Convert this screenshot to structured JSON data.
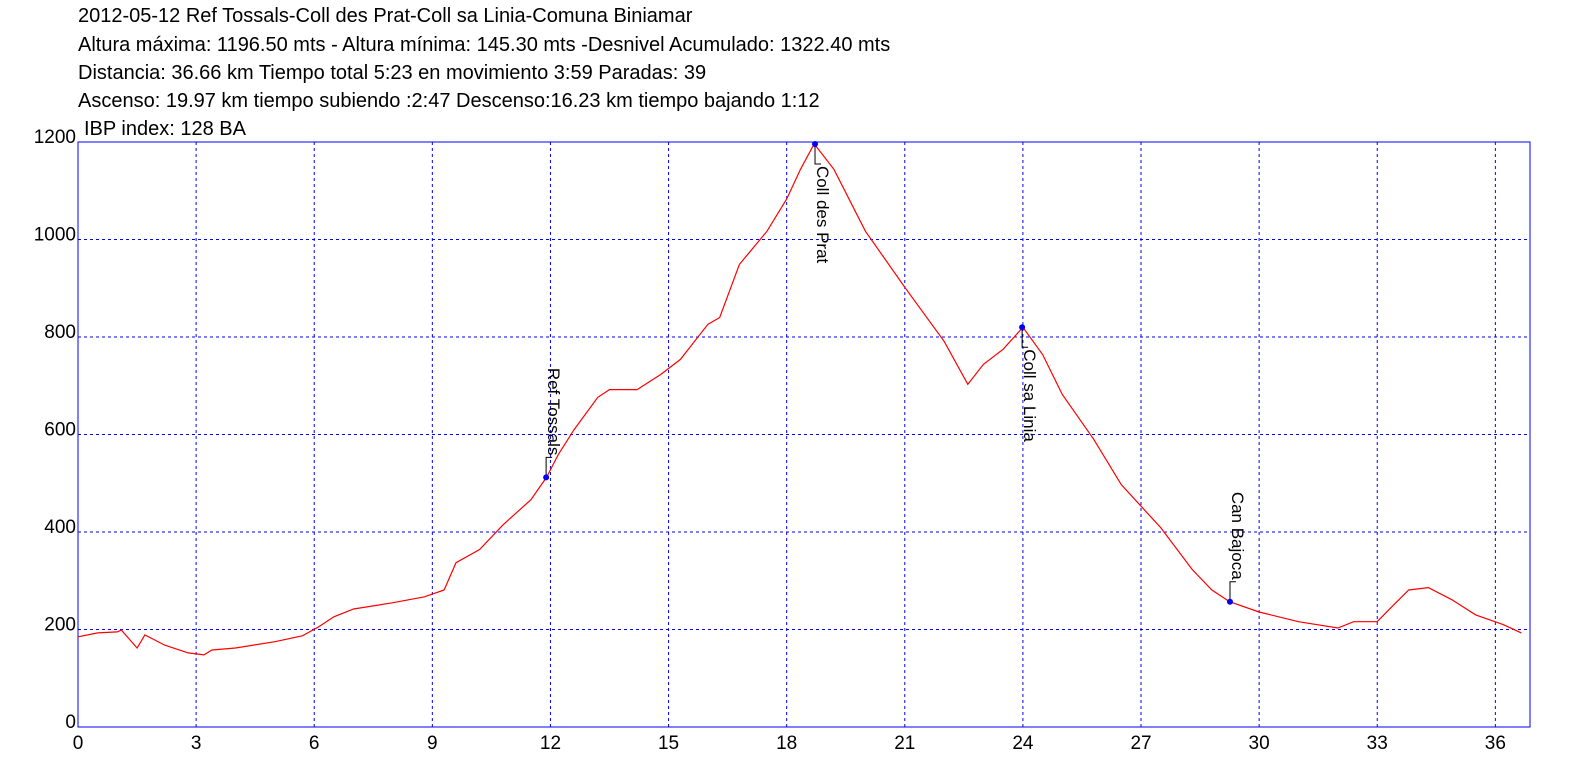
{
  "chart_data": {
    "type": "line",
    "title": "2012-05-12 Ref Tossals-Coll des Prat-Coll sa Linia-Comuna Biniamar",
    "subtitle": [
      "Altura máxima: 1196.50 mts - Altura mínima: 145.30 mts -Desnivel Acumulado: 1322.40 mts",
      "Distancia: 36.66 km  Tiempo total 5:23  en movimiento 3:59 Paradas: 39",
      "Ascenso: 19.97 km  tiempo subiendo :2:47  Descenso:16.23 km tiempo bajando 1:12",
      "IBP index: 128 BA"
    ],
    "x": [
      0,
      0.5,
      1.0,
      1.1,
      1.5,
      1.7,
      2.2,
      2.8,
      3.2,
      3.4,
      4,
      5,
      5.7,
      6.1,
      6.5,
      7,
      8,
      8.8,
      9.3,
      9.6,
      10.2,
      10.8,
      11.5,
      11.9,
      12.2,
      12.6,
      13.2,
      13.5,
      14.2,
      14.8,
      15.3,
      16,
      16.3,
      16.8,
      17.5,
      18,
      18.35,
      18.7,
      19.2,
      20,
      21,
      22,
      22.6,
      23,
      23.5,
      24.0,
      24.5,
      25,
      25.8,
      26.5,
      27.5,
      28.3,
      28.8,
      29.25,
      30,
      31,
      32,
      32.4,
      33,
      33.4,
      33.8,
      34.3,
      34.9,
      35.5,
      36.2,
      36.66
    ],
    "values": [
      185,
      193,
      195,
      199,
      162,
      189,
      168,
      152,
      148,
      158,
      162,
      175,
      187,
      205,
      226,
      242,
      255,
      267,
      281,
      337,
      364,
      415,
      466,
      512,
      559,
      610,
      676,
      692,
      692,
      723,
      754,
      826,
      840,
      949,
      1017,
      1083,
      1144,
      1196,
      1144,
      1017,
      902,
      791,
      703,
      744,
      775,
      820,
      764,
      682,
      590,
      497,
      409,
      323,
      281,
      257,
      236,
      216,
      203,
      216,
      216,
      249,
      281,
      286,
      261,
      230,
      210,
      193
    ],
    "color": "#ff0000",
    "waypoints": [
      {
        "name": "Ref Tossals",
        "x": 11.89,
        "y": 512,
        "side": "above"
      },
      {
        "name": "Coll des Prat",
        "x": 18.72,
        "y": 1196,
        "side": "below"
      },
      {
        "name": "Coll sa Linia",
        "x": 23.98,
        "y": 820,
        "side": "below"
      },
      {
        "name": "Can Bajoca",
        "x": 29.26,
        "y": 257,
        "side": "above"
      }
    ],
    "waypoint_color": "#0000ff",
    "xlim": [
      0,
      36.88
    ],
    "ylim": [
      0,
      1200
    ],
    "xticks": [
      0,
      3,
      6,
      9,
      12,
      15,
      18,
      21,
      24,
      27,
      30,
      33,
      36
    ],
    "yticks": [
      0,
      200,
      400,
      600,
      800,
      1000,
      1200
    ],
    "grid": true,
    "grid_color": "#0000ff"
  }
}
